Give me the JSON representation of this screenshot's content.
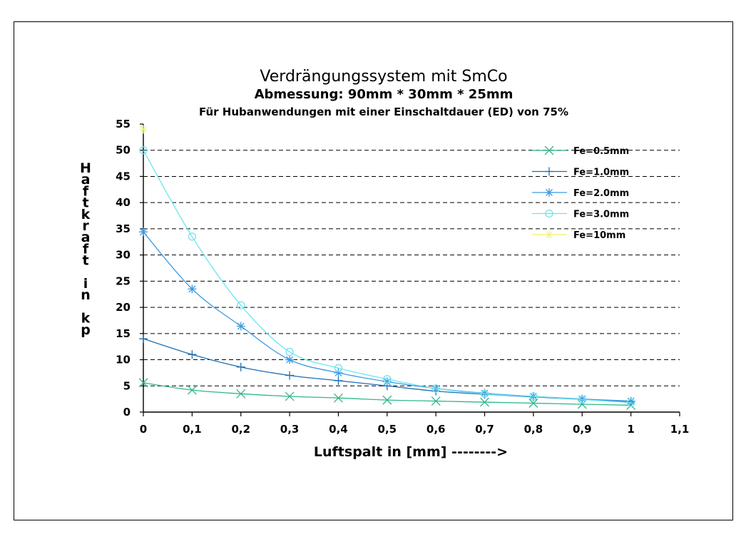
{
  "chart_data": {
    "type": "line",
    "title": "Verdrängungssystem mit SmCo",
    "subtitle": "Abmessung: 90mm * 30mm * 25mm",
    "subtitle2": "Für Hubanwendungen mit einer Einschaltdauer (ED) von 75%",
    "xlabel": "Luftspalt in [mm] -------->",
    "ylabel": "Haftkraft in kp",
    "xlim": [
      0,
      1.1
    ],
    "ylim": [
      0,
      55
    ],
    "x_ticks": [
      "0",
      "0,1",
      "0,2",
      "0,3",
      "0,4",
      "0,5",
      "0,6",
      "0,7",
      "0,8",
      "0,9",
      "1",
      "1,1"
    ],
    "y_ticks": [
      "0",
      "5",
      "10",
      "15",
      "20",
      "25",
      "30",
      "35",
      "40",
      "45",
      "50",
      "55"
    ],
    "grid": "horizontal-dashed",
    "legend_position": "top-right",
    "x": [
      0,
      0.1,
      0.2,
      0.3,
      0.4,
      0.5,
      0.6,
      0.7,
      0.8,
      0.9,
      1.0
    ],
    "series": [
      {
        "name": "Fe=0.5mm",
        "color": "#2fb88a",
        "marker": "x",
        "values": [
          5.6,
          4.2,
          3.5,
          3.0,
          2.7,
          2.3,
          2.1,
          1.9,
          1.7,
          1.5,
          1.3
        ]
      },
      {
        "name": "Fe=1.0mm",
        "color": "#1f6fb0",
        "marker": "plus",
        "values": [
          14.0,
          11.0,
          8.6,
          7.0,
          6.0,
          5.0,
          4.0,
          3.4,
          2.9,
          2.4,
          2.0
        ]
      },
      {
        "name": "Fe=2.0mm",
        "color": "#3d9be0",
        "marker": "asterisk",
        "values": [
          34.4,
          23.5,
          16.4,
          10.0,
          7.5,
          5.8,
          4.5,
          3.6,
          3.0,
          2.5,
          2.1
        ]
      },
      {
        "name": "Fe=3.0mm",
        "color": "#6fe4f0",
        "marker": "circle",
        "values": [
          50.0,
          33.5,
          20.4,
          11.5,
          8.4,
          6.3,
          4.5,
          3.5,
          3.0,
          2.4,
          1.8
        ]
      },
      {
        "name": "Fe=10mm",
        "color": "#f2ee6a",
        "marker": "star",
        "values": [
          54.0,
          null,
          null,
          null,
          null,
          null,
          null,
          null,
          null,
          null,
          null
        ]
      }
    ]
  }
}
